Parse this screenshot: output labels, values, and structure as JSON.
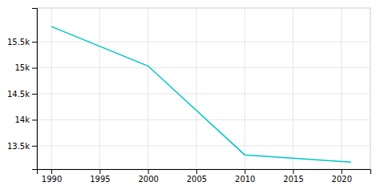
{
  "chart_data": {
    "type": "line",
    "x": [
      1990,
      2000,
      2010,
      2021
    ],
    "values": [
      15793,
      15035,
      13325,
      13185
    ],
    "color": "#00c5c8",
    "xlim": [
      1988.5,
      2023
    ],
    "xticks": [
      1990,
      1995,
      2000,
      2005,
      2010,
      2015,
      2020
    ],
    "ylim": [
      13050,
      16150
    ],
    "yticks": [
      {
        "value": 13500,
        "label": "13.5k"
      },
      {
        "value": 14000,
        "label": "14k"
      },
      {
        "value": 14500,
        "label": "14.5k"
      },
      {
        "value": 15000,
        "label": "15k"
      },
      {
        "value": 15500,
        "label": "15.5k"
      }
    ],
    "grid": true
  }
}
